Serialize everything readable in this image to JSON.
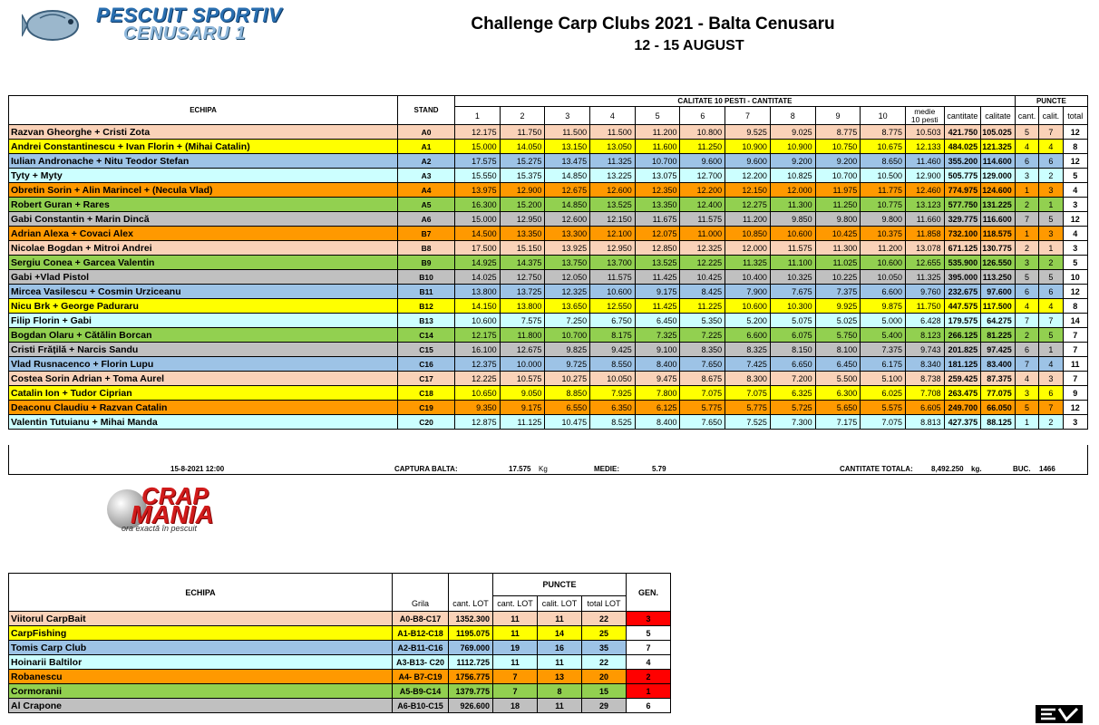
{
  "logo": {
    "line1": "PESCUIT SPORTIV",
    "line2": "CENUSARU 1"
  },
  "title": "Challenge Carp Clubs 2021 - Balta Cenusaru",
  "subtitle": "12 - 15 AUGUST",
  "colors": {
    "salmon": "#fad2b8",
    "yellow": "#ffff00",
    "blue": "#9dc3e6",
    "cyan": "#ccffff",
    "orange": "#ff9900",
    "green": "#92d050",
    "grey": "#c0c0c0",
    "red": "#ff0000",
    "white": "#ffffff"
  },
  "main_table": {
    "headers": {
      "team": "ECHIPA",
      "stand": "STAND",
      "quality_group": "CALITATE 10 PESTI - CANTITATE",
      "points_group": "PUNCTE",
      "fish": [
        "1",
        "2",
        "3",
        "4",
        "5",
        "6",
        "7",
        "8",
        "9",
        "10"
      ],
      "avg_line1": "medie",
      "avg_line2": "10 pesti",
      "qty": "cantitate",
      "quality": "calitate",
      "pts_qty": "cant.",
      "pts_quality": "calit.",
      "pts_total": "total"
    },
    "rows": [
      {
        "team": "Razvan Gheorghe + Cristi Zota",
        "stand": "A0",
        "color": "salmon",
        "fish": [
          "12.175",
          "11.750",
          "11.500",
          "11.500",
          "11.200",
          "10.800",
          "9.525",
          "9.025",
          "8.775",
          "8.775"
        ],
        "avg": "10.503",
        "qty": "421.750",
        "quality": "105.025",
        "pq": "5",
        "pc": "7",
        "pt": "12"
      },
      {
        "team": "Andrei Constantinescu + Ivan Florin + (Mihai Catalin)",
        "stand": "A1",
        "color": "yellow",
        "fish": [
          "15.000",
          "14.050",
          "13.150",
          "13.050",
          "11.600",
          "11.250",
          "10.900",
          "10.900",
          "10.750",
          "10.675"
        ],
        "avg": "12.133",
        "qty": "484.025",
        "quality": "121.325",
        "pq": "4",
        "pc": "4",
        "pt": "8"
      },
      {
        "team": "Iulian Andronache + Nitu Teodor Stefan",
        "stand": "A2",
        "color": "blue",
        "fish": [
          "17.575",
          "15.275",
          "13.475",
          "11.325",
          "10.700",
          "9.600",
          "9.600",
          "9.200",
          "9.200",
          "8.650"
        ],
        "avg": "11.460",
        "qty": "355.200",
        "quality": "114.600",
        "pq": "6",
        "pc": "6",
        "pt": "12"
      },
      {
        "team": "Tyty + Myty",
        "stand": "A3",
        "color": "cyan",
        "fish": [
          "15.550",
          "15.375",
          "14.850",
          "13.225",
          "13.075",
          "12.700",
          "12.200",
          "10.825",
          "10.700",
          "10.500"
        ],
        "avg": "12.900",
        "qty": "505.775",
        "quality": "129.000",
        "pq": "3",
        "pc": "2",
        "pt": "5"
      },
      {
        "team": "Obretin Sorin + Alin Marincel + (Necula Vlad)",
        "stand": "A4",
        "color": "orange",
        "fish": [
          "13.975",
          "12.900",
          "12.675",
          "12.600",
          "12.350",
          "12.200",
          "12.150",
          "12.000",
          "11.975",
          "11.775"
        ],
        "avg": "12.460",
        "qty": "774.975",
        "quality": "124.600",
        "pq": "1",
        "pc": "3",
        "pt": "4"
      },
      {
        "team": "Robert Guran + Rares",
        "stand": "A5",
        "color": "green",
        "fish": [
          "16.300",
          "15.200",
          "14.850",
          "13.525",
          "13.350",
          "12.400",
          "12.275",
          "11.300",
          "11.250",
          "10.775"
        ],
        "avg": "13.123",
        "qty": "577.750",
        "quality": "131.225",
        "pq": "2",
        "pc": "1",
        "pt": "3"
      },
      {
        "team": "Gabi Constantin + Marin Dincă",
        "stand": "A6",
        "color": "grey",
        "fish": [
          "15.000",
          "12.950",
          "12.600",
          "12.150",
          "11.675",
          "11.575",
          "11.200",
          "9.850",
          "9.800",
          "9.800"
        ],
        "avg": "11.660",
        "qty": "329.775",
        "quality": "116.600",
        "pq": "7",
        "pc": "5",
        "pt": "12"
      },
      {
        "team": "Adrian Alexa + Covaci Alex",
        "stand": "B7",
        "color": "orange",
        "fish": [
          "14.500",
          "13.350",
          "13.300",
          "12.100",
          "12.075",
          "11.000",
          "10.850",
          "10.600",
          "10.425",
          "10.375"
        ],
        "avg": "11.858",
        "qty": "732.100",
        "quality": "118.575",
        "pq": "1",
        "pc": "3",
        "pt": "4"
      },
      {
        "team": "Nicolae Bogdan + Mitroi Andrei",
        "stand": "B8",
        "color": "salmon",
        "fish": [
          "17.500",
          "15.150",
          "13.925",
          "12.950",
          "12.850",
          "12.325",
          "12.000",
          "11.575",
          "11.300",
          "11.200"
        ],
        "avg": "13.078",
        "qty": "671.125",
        "quality": "130.775",
        "pq": "2",
        "pc": "1",
        "pt": "3"
      },
      {
        "team": "Sergiu Conea + Garcea Valentin",
        "stand": "B9",
        "color": "green",
        "fish": [
          "14.925",
          "14.375",
          "13.750",
          "13.700",
          "13.525",
          "12.225",
          "11.325",
          "11.100",
          "11.025",
          "10.600"
        ],
        "avg": "12.655",
        "qty": "535.900",
        "quality": "126.550",
        "pq": "3",
        "pc": "2",
        "pt": "5"
      },
      {
        "team": "Gabi +Vlad Pistol",
        "stand": "B10",
        "color": "grey",
        "fish": [
          "14.025",
          "12.750",
          "12.050",
          "11.575",
          "11.425",
          "10.425",
          "10.400",
          "10.325",
          "10.225",
          "10.050"
        ],
        "avg": "11.325",
        "qty": "395.000",
        "quality": "113.250",
        "pq": "5",
        "pc": "5",
        "pt": "10"
      },
      {
        "team": "Mircea Vasilescu + Cosmin Urziceanu",
        "stand": "B11",
        "color": "blue",
        "fish": [
          "13.800",
          "13.725",
          "12.325",
          "10.600",
          "9.175",
          "8.425",
          "7.900",
          "7.675",
          "7.375",
          "6.600"
        ],
        "avg": "9.760",
        "qty": "232.675",
        "quality": "97.600",
        "pq": "6",
        "pc": "6",
        "pt": "12"
      },
      {
        "team": "Nicu Brk + George Paduraru",
        "stand": "B12",
        "color": "yellow",
        "fish": [
          "14.150",
          "13.800",
          "13.650",
          "12.550",
          "11.425",
          "11.225",
          "10.600",
          "10.300",
          "9.925",
          "9.875"
        ],
        "avg": "11.750",
        "qty": "447.575",
        "quality": "117.500",
        "pq": "4",
        "pc": "4",
        "pt": "8"
      },
      {
        "team": "Filip Florin + Gabi",
        "stand": "B13",
        "color": "cyan",
        "fish": [
          "10.600",
          "7.575",
          "7.250",
          "6.750",
          "6.450",
          "5.350",
          "5.200",
          "5.075",
          "5.025",
          "5.000"
        ],
        "avg": "6.428",
        "qty": "179.575",
        "quality": "64.275",
        "pq": "7",
        "pc": "7",
        "pt": "14"
      },
      {
        "team": "Bogdan Olaru + Cătălin Borcan",
        "stand": "C14",
        "color": "green",
        "fish": [
          "12.175",
          "11.800",
          "10.700",
          "8.175",
          "7.325",
          "7.225",
          "6.600",
          "6.075",
          "5.750",
          "5.400"
        ],
        "avg": "8.123",
        "qty": "266.125",
        "quality": "81.225",
        "pq": "2",
        "pc": "5",
        "pt": "7"
      },
      {
        "team": "Cristi Frățilă + Narcis Sandu",
        "stand": "C15",
        "color": "grey",
        "fish": [
          "16.100",
          "12.675",
          "9.825",
          "9.425",
          "9.100",
          "8.350",
          "8.325",
          "8.150",
          "8.100",
          "7.375"
        ],
        "avg": "9.743",
        "qty": "201.825",
        "quality": "97.425",
        "pq": "6",
        "pc": "1",
        "pt": "7"
      },
      {
        "team": "Vlad Rusnacenco + Florin Lupu",
        "stand": "C16",
        "color": "blue",
        "fish": [
          "12.375",
          "10.000",
          "9.725",
          "8.550",
          "8.400",
          "7.650",
          "7.425",
          "6.650",
          "6.450",
          "6.175"
        ],
        "avg": "8.340",
        "qty": "181.125",
        "quality": "83.400",
        "pq": "7",
        "pc": "4",
        "pt": "11"
      },
      {
        "team": "Costea Sorin Adrian + Toma Aurel",
        "stand": "C17",
        "color": "salmon",
        "fish": [
          "12.225",
          "10.575",
          "10.275",
          "10.050",
          "9.475",
          "8.675",
          "8.300",
          "7.200",
          "5.500",
          "5.100"
        ],
        "avg": "8.738",
        "qty": "259.425",
        "quality": "87.375",
        "pq": "4",
        "pc": "3",
        "pt": "7"
      },
      {
        "team": "Catalin Ion + Tudor Ciprian",
        "stand": "C18",
        "color": "yellow",
        "fish": [
          "10.650",
          "9.050",
          "8.850",
          "7.925",
          "7.800",
          "7.075",
          "7.075",
          "6.325",
          "6.300",
          "6.025"
        ],
        "avg": "7.708",
        "qty": "263.475",
        "quality": "77.075",
        "pq": "3",
        "pc": "6",
        "pt": "9"
      },
      {
        "team": "Deaconu Claudiu + Razvan Catalin",
        "stand": "C19",
        "color": "orange",
        "fish": [
          "9.350",
          "9.175",
          "6.550",
          "6.350",
          "6.125",
          "5.775",
          "5.775",
          "5.725",
          "5.650",
          "5.575"
        ],
        "avg": "6.605",
        "qty": "249.700",
        "quality": "66.050",
        "pq": "5",
        "pc": "7",
        "pt": "12"
      },
      {
        "team": "Valentin Tutuianu + Mihai Manda",
        "stand": "C20",
        "color": "cyan",
        "fish": [
          "12.875",
          "11.125",
          "10.475",
          "8.525",
          "8.400",
          "7.650",
          "7.525",
          "7.300",
          "7.175",
          "7.075"
        ],
        "avg": "8.813",
        "qty": "427.375",
        "quality": "88.125",
        "pq": "1",
        "pc": "2",
        "pt": "3"
      }
    ]
  },
  "footer": {
    "datetime": "15-8-2021 12:00",
    "capture_label": "CAPTURA BALTA:",
    "capture_value": "17.575",
    "capture_unit": "Kg",
    "avg_label": "MEDIE:",
    "avg_value": "5.79",
    "total_label": "CANTITATE TOTALA:",
    "total_value": "8,492.250",
    "total_unit": "kg.",
    "buc_label": "BUC.",
    "buc_value": "1466"
  },
  "crap_logo": {
    "line1": "CRAP",
    "line2": "MANIA",
    "tagline": "ora exactă în pescuit"
  },
  "clubs_table": {
    "headers": {
      "team": "ECHIPA",
      "grid": "Grila",
      "lot_qty": "cant. LOT",
      "points": "PUNCTE",
      "pts_qty": "cant. LOT",
      "pts_quality": "calit. LOT",
      "pts_total": "total LOT",
      "gen": "GEN."
    },
    "rows": [
      {
        "team": "Viitorul CarpBait",
        "grid": "A0-B8-C17",
        "lot": "1352.300",
        "cq": "11",
        "cc": "11",
        "ct": "22",
        "gen": "3",
        "color": "salmon",
        "gen_color": "red"
      },
      {
        "team": "CarpFishing",
        "grid": "A1-B12-C18",
        "lot": "1195.075",
        "cq": "11",
        "cc": "14",
        "ct": "25",
        "gen": "5",
        "color": "yellow",
        "gen_color": "white"
      },
      {
        "team": "Tomis Carp Club",
        "grid": "A2-B11-C16",
        "lot": "769.000",
        "cq": "19",
        "cc": "16",
        "ct": "35",
        "gen": "7",
        "color": "blue",
        "gen_color": "white"
      },
      {
        "team": "Hoinarii Baltilor",
        "grid": "A3-B13- C20",
        "lot": "1112.725",
        "cq": "11",
        "cc": "11",
        "ct": "22",
        "gen": "4",
        "color": "cyan",
        "gen_color": "white"
      },
      {
        "team": "Robanescu",
        "grid": "A4- B7-C19",
        "lot": "1756.775",
        "cq": "7",
        "cc": "13",
        "ct": "20",
        "gen": "2",
        "color": "orange",
        "gen_color": "red"
      },
      {
        "team": "Cormoranii",
        "grid": "A5-B9-C14",
        "lot": "1379.775",
        "cq": "7",
        "cc": "8",
        "ct": "15",
        "gen": "1",
        "color": "green",
        "gen_color": "red"
      },
      {
        "team": "Al Crapone",
        "grid": "A6-B10-C15",
        "lot": "926.600",
        "cq": "18",
        "cc": "11",
        "ct": "29",
        "gen": "6",
        "color": "grey",
        "gen_color": "white"
      }
    ]
  }
}
